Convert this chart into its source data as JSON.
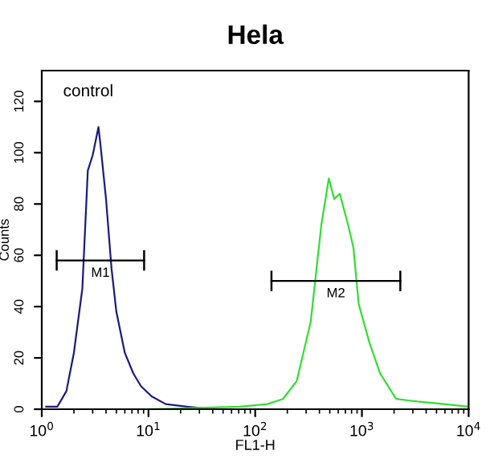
{
  "chart_data": {
    "type": "line",
    "title": "Hela",
    "xlabel": "FL1-H",
    "ylabel": "Counts",
    "log": "x",
    "xlim": [
      1,
      10000
    ],
    "ylim": [
      0,
      132
    ],
    "xticks": [
      {
        "value": 1,
        "label": "10$^{0}$"
      },
      {
        "value": 10,
        "label": "10$^{1}$"
      },
      {
        "value": 100,
        "label": "10$^{2}$"
      },
      {
        "value": 1000,
        "label": "10$^{3}$"
      },
      {
        "value": 10000,
        "label": "10$^{4}$"
      }
    ],
    "yticks": [
      0,
      20,
      40,
      60,
      80,
      100,
      120
    ],
    "grid": false,
    "legend": false,
    "marker": "none",
    "line_style": "solid",
    "series": [
      {
        "color": "#1a1a80",
        "x": [
          1.1,
          1.4,
          1.7,
          2.0,
          2.4,
          2.7,
          3.0,
          3.4,
          3.55,
          4.0,
          4.5,
          5.0,
          6.0,
          7.2,
          8.5,
          10.7,
          14.5,
          23,
          40
        ],
        "values": [
          1,
          1,
          7,
          22,
          47,
          93,
          99,
          110,
          103,
          82,
          55,
          38,
          22,
          14,
          9,
          5,
          2,
          1,
          0
        ]
      },
      {
        "color": "#33dd33",
        "x": [
          1,
          10,
          72,
          130,
          182,
          245,
          331,
          417,
          490,
          550,
          620,
          741,
          832,
          933,
          1175,
          1479,
          2089,
          3311,
          5888,
          10000
        ],
        "values": [
          0,
          0,
          1,
          2,
          4,
          11,
          34,
          72,
          90,
          82,
          84,
          72,
          63,
          41,
          26,
          14,
          4,
          3,
          2,
          1
        ]
      },
      {
        "name": "M1",
        "color": "#000000",
        "x": [
          1.38,
          9.1
        ],
        "values": [
          58,
          58
        ],
        "errors": [
          4,
          4
        ]
      },
      {
        "name": "M2",
        "color": "#000000",
        "x": [
          142,
          2290
        ],
        "values": [
          50,
          50
        ],
        "errors": [
          4,
          4
        ]
      }
    ],
    "annotations": [
      "control"
    ]
  }
}
